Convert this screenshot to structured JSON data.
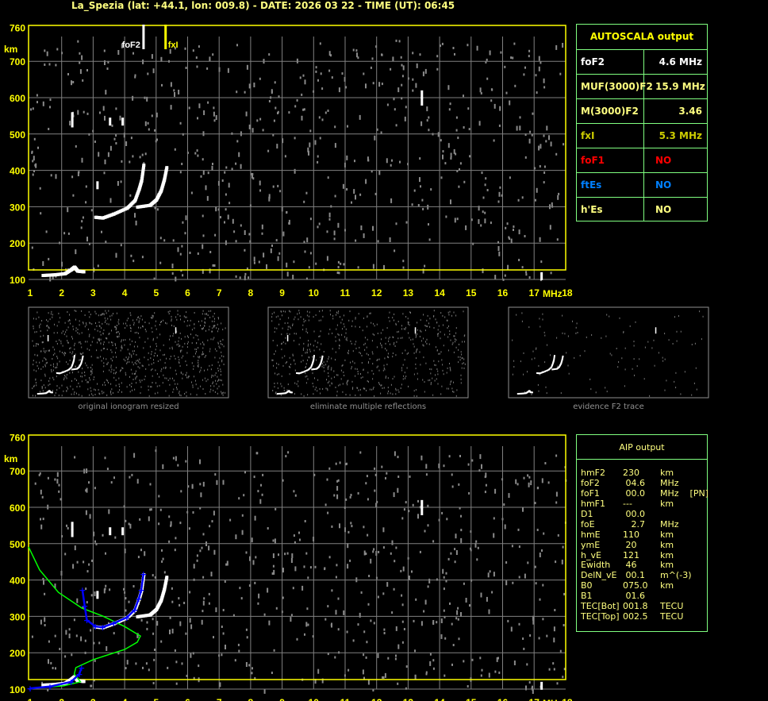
{
  "header": {
    "title": "La_Spezia (lat: +44.1, lon: 009.8) - DATE: 2026 03 22 - TIME (UT): 06:45"
  },
  "colors": {
    "text_yellow": "#ffff80",
    "frame_yellow": "#ffff00",
    "table_green": "#80ff80",
    "grid": "#808080",
    "fxl": "#cccc00",
    "foF1": "#ff0000",
    "ftEs": "#0080ff",
    "profile": "#00ff00",
    "fit": "#0000ff"
  },
  "autoscala": {
    "title": "AUTOSCALA output",
    "rows": [
      {
        "label": "foF2",
        "value": "4.6 MHz",
        "label_color": "#ffffff",
        "value_color": "#ffffff"
      },
      {
        "label": "MUF(3000)F2",
        "value": "15.9 MHz",
        "label_color": "#ffff80",
        "value_color": "#ffff80"
      },
      {
        "label": "M(3000)F2",
        "value": "3.46",
        "label_color": "#ffff80",
        "value_color": "#ffff80"
      },
      {
        "label": "fxI",
        "value": "5.3 MHz",
        "label_color": "#cccc00",
        "value_color": "#cccc00"
      },
      {
        "label": "foF1",
        "value": "NO",
        "label_color": "#ff0000",
        "value_color": "#ff0000"
      },
      {
        "label": "ftEs",
        "value": "NO",
        "label_color": "#0080ff",
        "value_color": "#0080ff"
      },
      {
        "label": "h'Es",
        "value": "NO",
        "label_color": "#ffff80",
        "value_color": "#ffff80"
      }
    ]
  },
  "aip": {
    "title": "AIP output",
    "rows": [
      {
        "k": "hmF2",
        "v": "230",
        "u": "km"
      },
      {
        "k": "foF2",
        "v": " 04.6",
        "u": "MHz"
      },
      {
        "k": "foF1",
        "v": " 00.0",
        "u": "MHz    [PN]"
      },
      {
        "k": "hmF1",
        "v": "---",
        "u": "km"
      },
      {
        "k": "D1",
        "v": " 00.0",
        "u": ""
      },
      {
        "k": "foE",
        "v": "   2.7",
        "u": "MHz"
      },
      {
        "k": "hmE",
        "v": "110",
        "u": "km"
      },
      {
        "k": "ymE",
        "v": " 20",
        "u": "km"
      },
      {
        "k": "h_vE",
        "v": "121",
        "u": "km"
      },
      {
        "k": "Ewidth",
        "v": " 46",
        "u": "km"
      },
      {
        "k": "DelN_vE",
        "v": " 00.1",
        "u": "m^(-3)"
      },
      {
        "k": "B0",
        "v": "075.0",
        "u": "km"
      },
      {
        "k": "B1",
        "v": " 01.6",
        "u": ""
      },
      {
        "k": "TEC[Bot]",
        "v": "001.8",
        "u": "TECU"
      },
      {
        "k": "TEC[Top]",
        "v": "002.5",
        "u": "TECU"
      }
    ]
  },
  "thumbnails": {
    "captions": [
      "original ionogram resized",
      "eliminate multiple reflections",
      "evidence F2 trace"
    ]
  },
  "chart_data": [
    {
      "type": "scatter",
      "panel": "autoscala ionogram",
      "xlabel": "MHz",
      "ylabel": "km",
      "xlim": [
        1,
        18
      ],
      "ylim": [
        100,
        760
      ],
      "x_ticks": [
        "1",
        "2",
        "3",
        "4",
        "5",
        "6",
        "7",
        "8",
        "9",
        "10",
        "11",
        "12",
        "13",
        "14",
        "15",
        "16",
        "17",
        "18"
      ],
      "y_ticks": [
        "100",
        "200",
        "300",
        "400",
        "500",
        "600",
        "700",
        "760"
      ],
      "grid": true,
      "markers": [
        {
          "label": "foF2",
          "x": 4.6,
          "color": "#ffffff"
        },
        {
          "label": "fxI",
          "x": 5.3,
          "color": "#ffff00"
        }
      ],
      "traces": {
        "E": [
          [
            1.4,
            112
          ],
          [
            1.8,
            114
          ],
          [
            2.1,
            117
          ],
          [
            2.3,
            128
          ],
          [
            2.4,
            135
          ],
          [
            2.5,
            124
          ],
          [
            2.7,
            122
          ]
        ],
        "F2_o": [
          [
            3.07,
            272
          ],
          [
            3.3,
            270
          ],
          [
            3.65,
            281
          ],
          [
            4.07,
            297
          ],
          [
            4.32,
            318
          ],
          [
            4.45,
            349
          ],
          [
            4.53,
            373
          ],
          [
            4.6,
            417
          ]
        ],
        "F2_x": [
          [
            4.4,
            300
          ],
          [
            4.8,
            305
          ],
          [
            5.0,
            320
          ],
          [
            5.15,
            345
          ],
          [
            5.25,
            375
          ],
          [
            5.33,
            410
          ]
        ]
      }
    },
    {
      "type": "line",
      "panel": "aip ionogram",
      "xlabel": "MHz",
      "ylabel": "km",
      "xlim": [
        1,
        18
      ],
      "ylim": [
        100,
        760
      ],
      "grid": true,
      "series": [
        {
          "color": "#00ff00",
          "points": [
            [
              0.95,
              491
            ],
            [
              1.3,
              428
            ],
            [
              1.9,
              366
            ],
            [
              2.64,
              323
            ],
            [
              3.3,
              301
            ],
            [
              4.0,
              272
            ],
            [
              4.5,
              246
            ],
            [
              4.4,
              229
            ],
            [
              4.0,
              209
            ],
            [
              3.0,
              181
            ],
            [
              2.45,
              159
            ],
            [
              2.4,
              141
            ],
            [
              2.6,
              120
            ],
            [
              2.06,
              109
            ],
            [
              1.0,
              102
            ]
          ]
        },
        {
          "color": "#0000ff",
          "points": [
            [
              1.0,
              102
            ],
            [
              1.63,
              107
            ],
            [
              2.3,
              120
            ],
            [
              2.56,
              141
            ],
            [
              2.63,
              159
            ]
          ]
        },
        {
          "color": "#0000ff",
          "points": [
            [
              2.66,
              373
            ],
            [
              2.73,
              329
            ],
            [
              2.8,
              290
            ],
            [
              3.07,
              272
            ],
            [
              3.3,
              270
            ],
            [
              3.65,
              281
            ],
            [
              4.07,
              297
            ],
            [
              4.32,
              318
            ],
            [
              4.45,
              349
            ],
            [
              4.53,
              373
            ],
            [
              4.6,
              417
            ]
          ]
        }
      ]
    }
  ]
}
